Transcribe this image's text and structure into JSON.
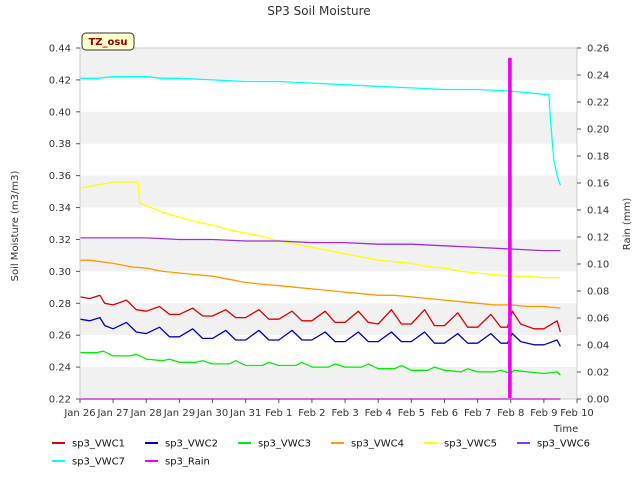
{
  "chart_data": {
    "type": "line",
    "title": "SP3 Soil Moisture",
    "xlabel": "Time",
    "ylabel": "Soil Moisture (m3/m3)",
    "y2label": "Rain (mm)",
    "annotation": "TZ_osu",
    "xlim": [
      0,
      15
    ],
    "ylim": [
      0.22,
      0.44
    ],
    "y2lim": [
      0,
      0.26
    ],
    "x_ticks": [
      0,
      1,
      2,
      3,
      4,
      5,
      6,
      7,
      8,
      9,
      10,
      11,
      12,
      13,
      14,
      15
    ],
    "x_tick_labels": [
      "Jan 26",
      "Jan 27",
      "Jan 28",
      "Jan 29",
      "Jan 30",
      "Jan 31",
      "Feb 1",
      "Feb 2",
      "Feb 3",
      "Feb 4",
      "Feb 5",
      "Feb 6",
      "Feb 7",
      "Feb 8",
      "Feb 9",
      "Feb 10"
    ],
    "y_ticks": [
      0.22,
      0.24,
      0.26,
      0.28,
      0.3,
      0.32,
      0.34,
      0.36,
      0.38,
      0.4,
      0.42,
      0.44
    ],
    "y_tick_labels": [
      "0.22",
      "0.24",
      "0.26",
      "0.28",
      "0.30",
      "0.32",
      "0.34",
      "0.36",
      "0.38",
      "0.40",
      "0.42",
      "0.44"
    ],
    "y2_ticks": [
      0,
      0.02,
      0.04,
      0.06,
      0.08,
      0.1,
      0.12,
      0.14,
      0.16,
      0.18,
      0.2,
      0.22,
      0.24,
      0.26
    ],
    "y2_tick_labels": [
      "0.00",
      "0.02",
      "0.04",
      "0.06",
      "0.08",
      "0.10",
      "0.12",
      "0.14",
      "0.16",
      "0.18",
      "0.20",
      "0.22",
      "0.24",
      "0.26"
    ],
    "grid": "horizontal bands",
    "legend_position": "bottom",
    "series": [
      {
        "name": "sp3_VWC1",
        "color": "#dd0000",
        "axis": "left",
        "x": [
          0,
          0.3,
          0.6,
          0.75,
          1.0,
          1.4,
          1.7,
          2.0,
          2.4,
          2.7,
          3.0,
          3.4,
          3.7,
          4.0,
          4.4,
          4.7,
          5.0,
          5.4,
          5.7,
          6.0,
          6.4,
          6.7,
          7.0,
          7.4,
          7.7,
          8.0,
          8.4,
          8.7,
          9.0,
          9.4,
          9.7,
          10.0,
          10.4,
          10.7,
          11.0,
          11.4,
          11.7,
          12.0,
          12.4,
          12.7,
          12.9,
          13.05,
          13.3,
          13.7,
          14.0,
          14.4,
          14.5
        ],
        "y": [
          0.284,
          0.283,
          0.285,
          0.28,
          0.279,
          0.282,
          0.276,
          0.275,
          0.278,
          0.273,
          0.273,
          0.277,
          0.272,
          0.272,
          0.276,
          0.271,
          0.271,
          0.276,
          0.27,
          0.27,
          0.275,
          0.269,
          0.269,
          0.275,
          0.268,
          0.268,
          0.275,
          0.268,
          0.267,
          0.276,
          0.267,
          0.267,
          0.276,
          0.266,
          0.266,
          0.274,
          0.265,
          0.265,
          0.273,
          0.265,
          0.265,
          0.275,
          0.267,
          0.264,
          0.264,
          0.269,
          0.262
        ]
      },
      {
        "name": "sp3_VWC2",
        "color": "#0000bb",
        "axis": "left",
        "x": [
          0,
          0.3,
          0.6,
          0.75,
          1.0,
          1.4,
          1.7,
          2.0,
          2.4,
          2.7,
          3.0,
          3.4,
          3.7,
          4.0,
          4.4,
          4.7,
          5.0,
          5.4,
          5.7,
          6.0,
          6.4,
          6.7,
          7.0,
          7.4,
          7.7,
          8.0,
          8.4,
          8.7,
          9.0,
          9.4,
          9.7,
          10.0,
          10.4,
          10.7,
          11.0,
          11.4,
          11.7,
          12.0,
          12.4,
          12.7,
          12.9,
          13.05,
          13.3,
          13.7,
          14.0,
          14.4,
          14.5
        ],
        "y": [
          0.27,
          0.269,
          0.271,
          0.266,
          0.264,
          0.268,
          0.262,
          0.261,
          0.265,
          0.259,
          0.259,
          0.264,
          0.258,
          0.258,
          0.263,
          0.257,
          0.257,
          0.263,
          0.257,
          0.257,
          0.263,
          0.257,
          0.257,
          0.262,
          0.256,
          0.256,
          0.262,
          0.256,
          0.256,
          0.262,
          0.256,
          0.256,
          0.262,
          0.255,
          0.255,
          0.261,
          0.255,
          0.255,
          0.261,
          0.255,
          0.255,
          0.261,
          0.256,
          0.254,
          0.254,
          0.257,
          0.253
        ]
      },
      {
        "name": "sp3_VWC3",
        "color": "#00ee00",
        "axis": "left",
        "x": [
          0,
          0.5,
          0.7,
          1.0,
          1.5,
          1.7,
          2.0,
          2.5,
          2.7,
          3.0,
          3.5,
          3.7,
          4.0,
          4.5,
          4.7,
          5.0,
          5.5,
          5.7,
          6.0,
          6.5,
          6.7,
          7.0,
          7.5,
          7.7,
          8.0,
          8.5,
          8.7,
          9.0,
          9.5,
          9.7,
          10.0,
          10.5,
          10.7,
          11.0,
          11.5,
          11.7,
          12.0,
          12.5,
          12.7,
          13.0,
          13.1,
          13.5,
          14.0,
          14.4,
          14.5
        ],
        "y": [
          0.249,
          0.249,
          0.25,
          0.247,
          0.247,
          0.248,
          0.245,
          0.244,
          0.245,
          0.243,
          0.243,
          0.244,
          0.242,
          0.242,
          0.244,
          0.241,
          0.241,
          0.243,
          0.241,
          0.241,
          0.243,
          0.24,
          0.24,
          0.242,
          0.24,
          0.24,
          0.242,
          0.239,
          0.239,
          0.241,
          0.238,
          0.238,
          0.24,
          0.238,
          0.237,
          0.239,
          0.237,
          0.237,
          0.238,
          0.236,
          0.238,
          0.237,
          0.236,
          0.237,
          0.235
        ]
      },
      {
        "name": "sp3_VWC4",
        "color": "#ff9900",
        "axis": "left",
        "x": [
          0,
          0.3,
          1.0,
          1.5,
          2.0,
          2.5,
          3.0,
          3.5,
          4.0,
          4.5,
          5.0,
          5.5,
          6.0,
          6.5,
          7.0,
          7.5,
          8.0,
          8.5,
          9.0,
          9.5,
          10.0,
          10.5,
          11.0,
          11.5,
          12.0,
          12.5,
          13.0,
          13.5,
          14.0,
          14.5
        ],
        "y": [
          0.307,
          0.307,
          0.305,
          0.303,
          0.302,
          0.3,
          0.299,
          0.298,
          0.297,
          0.295,
          0.293,
          0.292,
          0.291,
          0.29,
          0.289,
          0.288,
          0.287,
          0.286,
          0.285,
          0.285,
          0.284,
          0.283,
          0.282,
          0.281,
          0.28,
          0.279,
          0.279,
          0.278,
          0.278,
          0.277
        ]
      },
      {
        "name": "sp3_VWC5",
        "color": "#ffff00",
        "axis": "left",
        "x": [
          0,
          0.5,
          1.0,
          1.5,
          1.75,
          1.8,
          2.0,
          2.5,
          3.0,
          3.5,
          4.0,
          4.5,
          5.0,
          5.5,
          6.0,
          6.5,
          7.0,
          7.5,
          8.0,
          8.5,
          9.0,
          9.5,
          10.0,
          10.5,
          11.0,
          11.5,
          12.0,
          12.5,
          13.0,
          13.5,
          14.0,
          14.5
        ],
        "y": [
          0.352,
          0.354,
          0.356,
          0.356,
          0.356,
          0.343,
          0.341,
          0.337,
          0.334,
          0.331,
          0.329,
          0.326,
          0.324,
          0.322,
          0.319,
          0.317,
          0.315,
          0.313,
          0.311,
          0.309,
          0.307,
          0.306,
          0.305,
          0.303,
          0.302,
          0.3,
          0.299,
          0.298,
          0.297,
          0.297,
          0.296,
          0.296
        ]
      },
      {
        "name": "sp3_VWC6",
        "color": "#9933dd",
        "axis": "left",
        "x": [
          0,
          1.0,
          2.0,
          3.0,
          4.0,
          5.0,
          6.0,
          7.0,
          8.0,
          9.0,
          10.0,
          11.0,
          12.0,
          13.0,
          14.0,
          14.5
        ],
        "y": [
          0.321,
          0.321,
          0.321,
          0.32,
          0.32,
          0.319,
          0.319,
          0.318,
          0.318,
          0.317,
          0.317,
          0.316,
          0.315,
          0.314,
          0.313,
          0.313
        ]
      },
      {
        "name": "sp3_VWC7",
        "color": "#00ffff",
        "axis": "left",
        "x": [
          0,
          0.5,
          1.0,
          1.5,
          2.0,
          2.5,
          3.0,
          4.0,
          5.0,
          6.0,
          7.0,
          8.0,
          9.0,
          10.0,
          11.0,
          12.0,
          13.0,
          13.5,
          14.0,
          14.15,
          14.2,
          14.3,
          14.4,
          14.5
        ],
        "y": [
          0.421,
          0.421,
          0.422,
          0.422,
          0.422,
          0.421,
          0.421,
          0.42,
          0.419,
          0.419,
          0.418,
          0.417,
          0.416,
          0.415,
          0.414,
          0.414,
          0.413,
          0.412,
          0.411,
          0.411,
          0.395,
          0.37,
          0.36,
          0.354
        ]
      },
      {
        "name": "sp3_Rain",
        "color": "#ee00ee",
        "axis": "right",
        "x": [
          0,
          12.95,
          12.95,
          13.0,
          13.0,
          14.5
        ],
        "y": [
          0,
          0,
          0.252,
          0.252,
          0,
          0
        ]
      }
    ]
  }
}
